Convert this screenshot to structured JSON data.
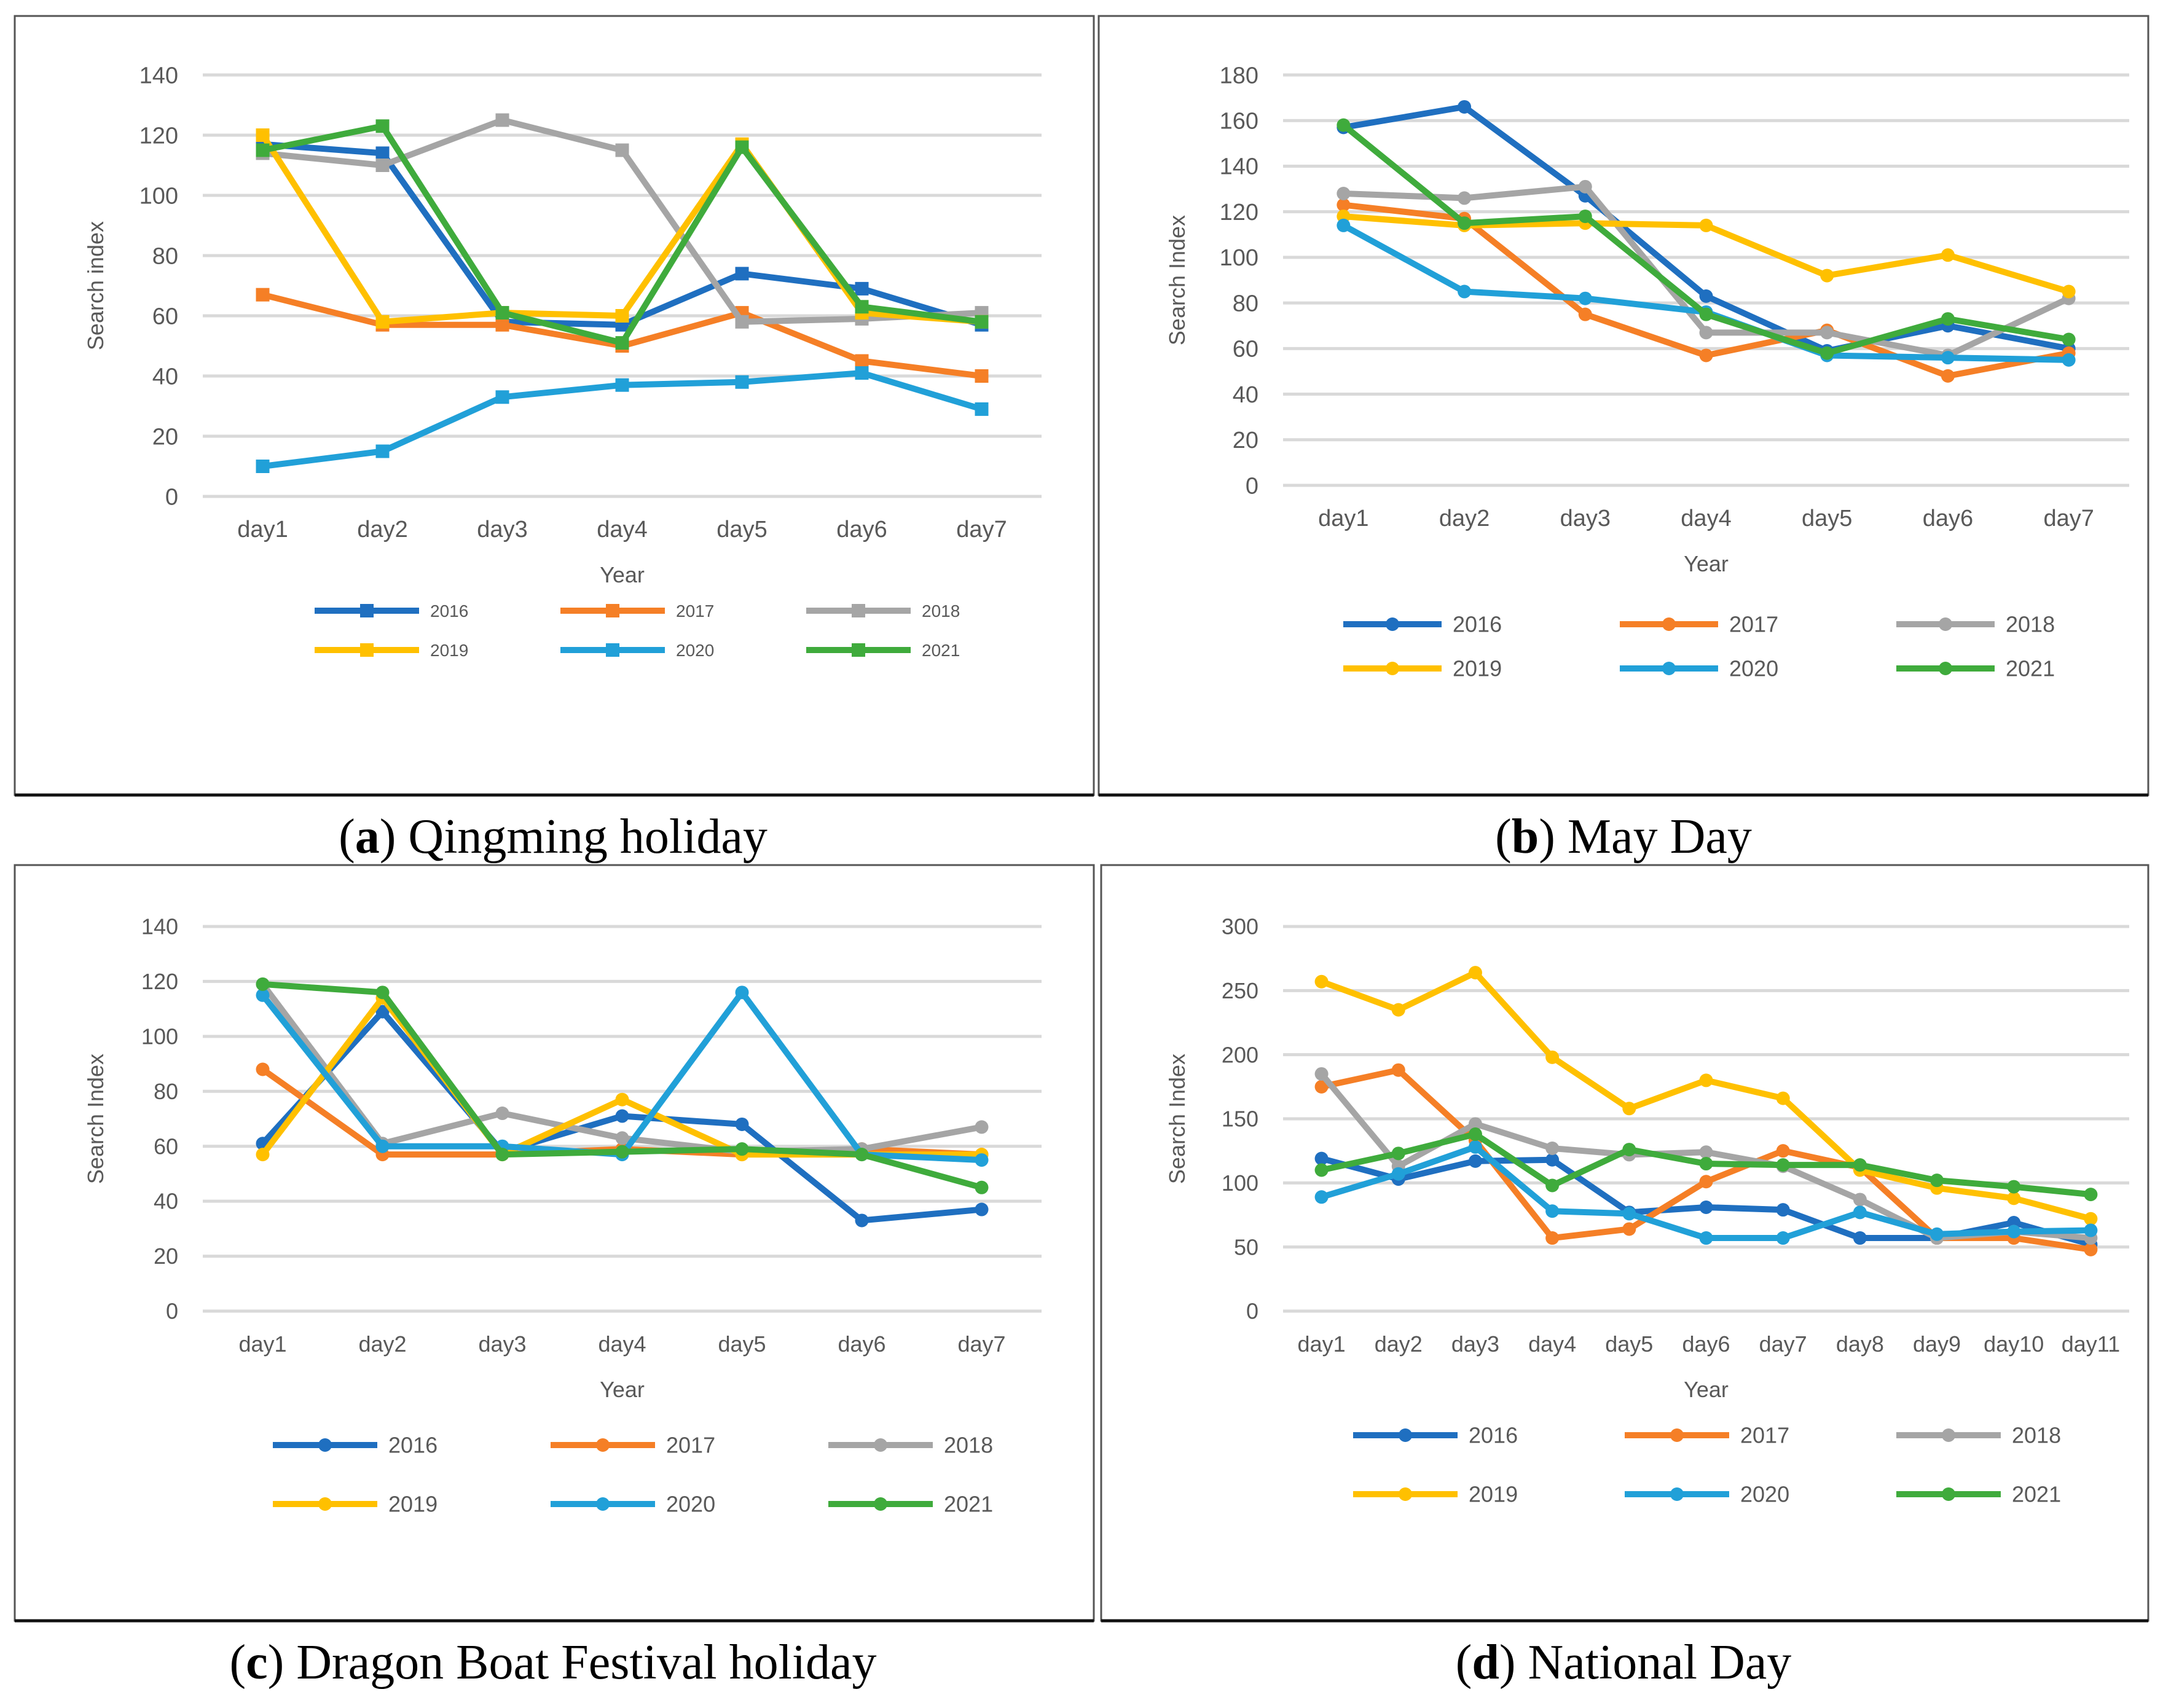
{
  "colors": {
    "2016": "#1f6fc0",
    "2017": "#f57f26",
    "2018": "#a5a5a5",
    "2019": "#ffc000",
    "2020": "#21a0d8",
    "2021": "#3fab3c"
  },
  "captions": [
    {
      "letter": "a",
      "text": "Qingming holiday"
    },
    {
      "letter": "b",
      "text": "May Day"
    },
    {
      "letter": "c",
      "text": "Dragon Boat Festival holiday"
    },
    {
      "letter": "d",
      "text": "National Day"
    }
  ],
  "chart_data": [
    {
      "type": "line",
      "title": "(a) Qingming holiday",
      "marker": "square",
      "xlabel": "Year",
      "ylabel": "Search index",
      "ylim": [
        0,
        140
      ],
      "yticks": [
        0,
        20,
        40,
        60,
        80,
        100,
        120,
        140
      ],
      "categories": [
        "day1",
        "day2",
        "day3",
        "day4",
        "day5",
        "day6",
        "day7"
      ],
      "series": [
        {
          "name": "2016",
          "values": [
            117,
            114,
            58,
            57,
            74,
            69,
            57
          ]
        },
        {
          "name": "2017",
          "values": [
            67,
            57,
            57,
            50,
            61,
            45,
            40
          ]
        },
        {
          "name": "2018",
          "values": [
            114,
            110,
            125,
            115,
            58,
            59,
            61
          ]
        },
        {
          "name": "2019",
          "values": [
            120,
            58,
            61,
            60,
            117,
            61,
            58
          ]
        },
        {
          "name": "2020",
          "values": [
            10,
            15,
            33,
            37,
            38,
            41,
            29
          ]
        },
        {
          "name": "2021",
          "values": [
            115,
            123,
            61,
            51,
            116,
            63,
            58
          ]
        }
      ]
    },
    {
      "type": "line",
      "title": "(b) May Day",
      "marker": "circle",
      "xlabel": "Year",
      "ylabel": "Search Index",
      "ylim": [
        0,
        180
      ],
      "yticks": [
        0,
        20,
        40,
        60,
        80,
        100,
        120,
        140,
        160,
        180
      ],
      "categories": [
        "day1",
        "day2",
        "day3",
        "day4",
        "day5",
        "day6",
        "day7"
      ],
      "series": [
        {
          "name": "2016",
          "values": [
            157,
            166,
            127,
            83,
            59,
            70,
            60
          ]
        },
        {
          "name": "2017",
          "values": [
            123,
            117,
            75,
            57,
            68,
            48,
            58
          ]
        },
        {
          "name": "2018",
          "values": [
            128,
            126,
            131,
            67,
            67,
            57,
            82
          ]
        },
        {
          "name": "2019",
          "values": [
            118,
            114,
            115,
            114,
            92,
            101,
            85
          ]
        },
        {
          "name": "2020",
          "values": [
            114,
            85,
            82,
            76,
            57,
            56,
            55
          ]
        },
        {
          "name": "2021",
          "values": [
            158,
            115,
            118,
            75,
            58,
            73,
            64
          ]
        }
      ]
    },
    {
      "type": "line",
      "title": "(c) Dragon Boat Festival holiday",
      "marker": "circle",
      "xlabel": "Year",
      "ylabel": "Search Index",
      "ylim": [
        0,
        140
      ],
      "yticks": [
        0,
        20,
        40,
        60,
        80,
        100,
        120,
        140
      ],
      "categories": [
        "day1",
        "day2",
        "day3",
        "day4",
        "day5",
        "day6",
        "day7"
      ],
      "series": [
        {
          "name": "2016",
          "values": [
            61,
            109,
            58,
            71,
            68,
            33,
            37
          ]
        },
        {
          "name": "2017",
          "values": [
            88,
            57,
            57,
            59,
            57,
            59,
            57
          ]
        },
        {
          "name": "2018",
          "values": [
            119,
            61,
            72,
            63,
            58,
            59,
            67
          ]
        },
        {
          "name": "2019",
          "values": [
            57,
            114,
            57,
            77,
            57,
            57,
            57
          ]
        },
        {
          "name": "2020",
          "values": [
            115,
            60,
            60,
            57,
            116,
            57,
            55
          ]
        },
        {
          "name": "2021",
          "values": [
            119,
            116,
            57,
            58,
            59,
            57,
            45
          ]
        }
      ]
    },
    {
      "type": "line",
      "title": "(d) National Day",
      "marker": "circle",
      "xlabel": "Year",
      "ylabel": "Search Index",
      "ylim": [
        0,
        300
      ],
      "yticks": [
        0,
        50,
        100,
        150,
        200,
        250,
        300
      ],
      "categories": [
        "day1",
        "day2",
        "day3",
        "day4",
        "day5",
        "day6",
        "day7",
        "day8",
        "day9",
        "day10",
        "day11"
      ],
      "series": [
        {
          "name": "2016",
          "values": [
            119,
            103,
            117,
            118,
            77,
            81,
            79,
            57,
            57,
            69,
            52
          ]
        },
        {
          "name": "2017",
          "values": [
            175,
            188,
            133,
            57,
            64,
            101,
            125,
            112,
            57,
            57,
            48
          ]
        },
        {
          "name": "2018",
          "values": [
            185,
            113,
            146,
            127,
            122,
            124,
            113,
            87,
            57,
            62,
            57
          ]
        },
        {
          "name": "2019",
          "values": [
            257,
            235,
            264,
            198,
            158,
            180,
            166,
            110,
            96,
            88,
            72
          ]
        },
        {
          "name": "2020",
          "values": [
            89,
            107,
            128,
            78,
            76,
            57,
            57,
            77,
            60,
            62,
            63
          ]
        },
        {
          "name": "2021",
          "values": [
            110,
            123,
            138,
            98,
            126,
            115,
            114,
            114,
            102,
            97,
            91
          ]
        }
      ]
    }
  ]
}
